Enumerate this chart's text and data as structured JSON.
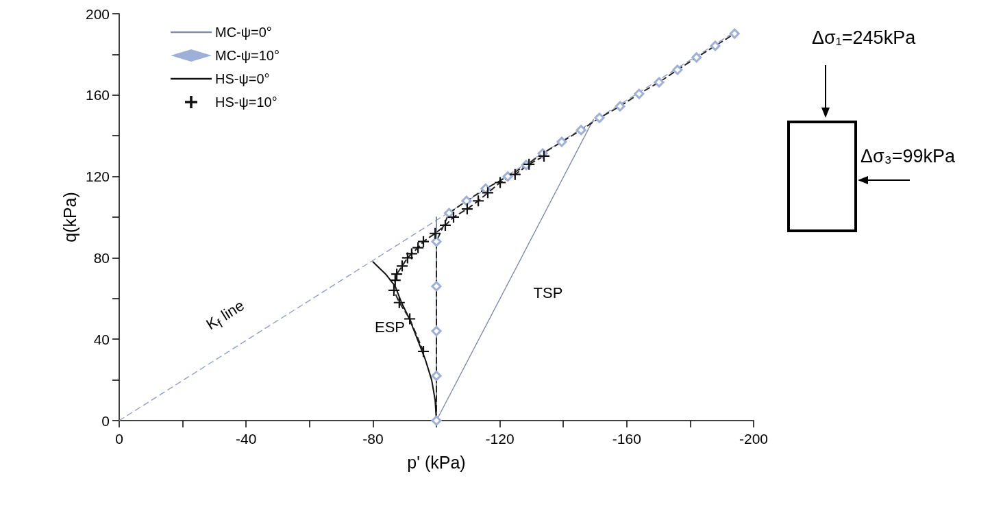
{
  "chart_data": {
    "type": "line",
    "xlabel": "p' (kPa)",
    "ylabel": "q(kPa)",
    "xlim": [
      0,
      -200
    ],
    "xticks": [
      0,
      {
        "value": -20,
        "label": null
      },
      -40,
      {
        "value": -60,
        "label": null
      },
      -80,
      {
        "value": -100,
        "label": null
      },
      -120,
      {
        "value": -140,
        "label": null
      },
      -160,
      {
        "value": -180,
        "label": null
      },
      -200
    ],
    "ylim": [
      0,
      200
    ],
    "yticks": [
      0,
      {
        "value": 20,
        "label": null
      },
      40,
      {
        "value": 60,
        "label": null
      },
      80,
      {
        "value": 100,
        "label": null
      },
      120,
      {
        "value": 140,
        "label": null
      },
      160,
      {
        "value": 180,
        "label": null
      },
      200
    ],
    "grid": false,
    "legend": "top left",
    "series": [
      {
        "name": "MC-ψ=0°",
        "color": "#7f8ca6",
        "line_style": "solid",
        "marker": "none",
        "x": [
          -100,
          -100
        ],
        "values": [
          0,
          100
        ]
      },
      {
        "name": "MC-ψ=10°",
        "color": "#9fb0d8",
        "line_style": "dashed",
        "marker": "diamond",
        "x": [
          -100,
          -100,
          -100,
          -100,
          -100,
          -104,
          -109.5,
          -115.5,
          -122.5,
          -128.3,
          -133.5,
          -139.5,
          -145.6,
          -151.4,
          -157.9,
          -163.9,
          -170.2,
          -176,
          -182,
          -187.9,
          -194
        ],
        "values": [
          0,
          22,
          44,
          66,
          88,
          102,
          108,
          114,
          120,
          125.6,
          131.3,
          137,
          142.8,
          148.8,
          154.5,
          160.6,
          166.3,
          172.4,
          178.5,
          184.2,
          190.2
        ]
      },
      {
        "name": "HS-ψ=0°",
        "color": "#111111",
        "line_style": "solid",
        "marker": "none",
        "x": [
          -100,
          -99.6,
          -98.5,
          -96.5,
          -94,
          -91.5,
          -89,
          -87,
          -84,
          -80
        ],
        "values": [
          0,
          10,
          20,
          30,
          40,
          50,
          58,
          66,
          72,
          78
        ]
      },
      {
        "name": "HS-ψ=10°",
        "color": "#111111",
        "line_style": "dashed",
        "marker": "cross",
        "x": [
          -95.9,
          -91.6,
          -88.3,
          -86.6,
          -87,
          -87.5,
          -89.2,
          -90.9,
          -92.2,
          -94.2,
          -95.9,
          -99.6,
          -102.8,
          -105.4,
          -109.7,
          -113.2,
          -116.2,
          -120.1,
          -124.8,
          -129.2,
          -133.9
        ],
        "values": [
          34,
          50,
          58,
          64,
          69,
          72,
          76,
          80,
          82,
          85,
          88,
          92,
          96,
          100,
          104,
          108,
          112,
          117,
          121,
          126,
          130
        ]
      },
      {
        "color": "#7f8ca6",
        "line_style": "solid",
        "marker": "none",
        "x": [
          -100,
          -149.5
        ],
        "values": [
          0,
          148
        ]
      },
      {
        "color": "#8f9fc4",
        "line_style": "dashed",
        "marker": "none",
        "x": [
          0,
          -193
        ],
        "values": [
          0,
          190
        ]
      }
    ],
    "annotations": [
      "K$_{f}$ line",
      "ESP",
      "TSP",
      "Δσ₁=245kPa",
      "Δσ₃=99kPa"
    ]
  }
}
